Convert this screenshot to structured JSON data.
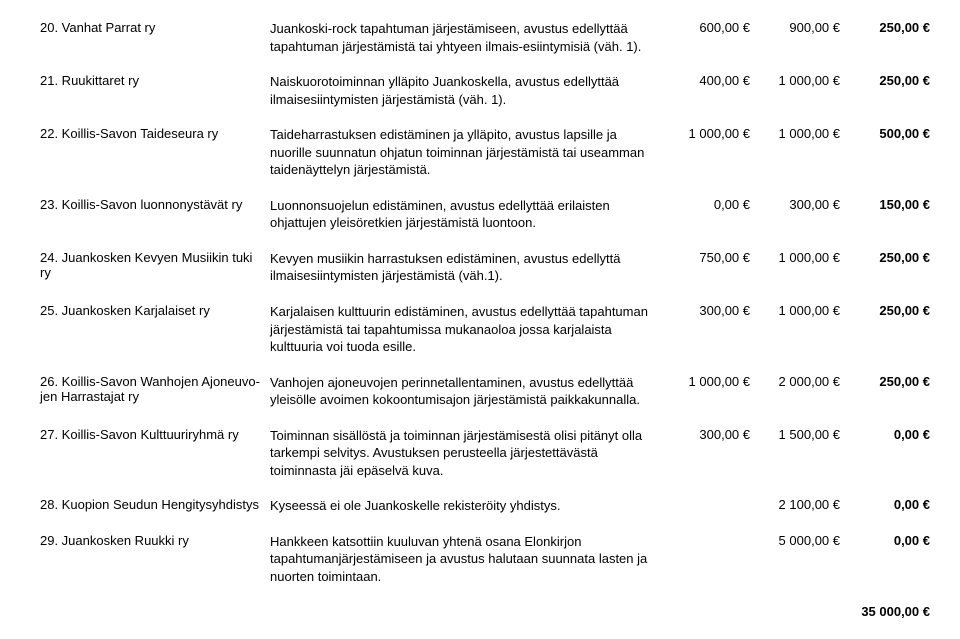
{
  "rows": [
    {
      "label": "20. Vanhat Parrat ry",
      "desc": "Juankoski-rock tapahtuman järjestämiseen, avustus edellyttää tapahtuman järjestämistä tai yhtyeen ilmais-esiintymisiä (väh. 1).",
      "a1": "600,00 €",
      "a2": "900,00 €",
      "a3": "250,00 €"
    },
    {
      "label": "21. Ruukittaret ry",
      "desc": "Naiskuorotoiminnan ylläpito Juankoskella, avustus edellyttää ilmaisesiintymisten järjestämistä (väh. 1).",
      "a1": "400,00 €",
      "a2": "1 000,00 €",
      "a3": "250,00 €"
    },
    {
      "label": "22. Koillis-Savon Taideseura ry",
      "desc": "Taideharrastuksen edistäminen ja ylläpito, avustus lapsille ja nuorille suunnatun ohjatun toiminnan järjestämistä tai useamman taidenäyttelyn järjestämistä.",
      "a1": "1 000,00 €",
      "a2": "1 000,00 €",
      "a3": "500,00 €"
    },
    {
      "label": "23. Koillis-Savon luonnonystävät ry",
      "desc": "Luonnonsuojelun edistäminen, avustus edellyttää erilaisten ohjattujen yleisöretkien järjestämistä luontoon.",
      "a1": "0,00 €",
      "a2": "300,00 €",
      "a3": "150,00 €"
    },
    {
      "label": "24. Juankosken Kevyen Musiikin tuki ry",
      "desc": "Kevyen musiikin harrastuksen edistäminen, avustus edellyttä ilmaisesiintymisten järjestämistä (väh.1).",
      "a1": "750,00 €",
      "a2": "1 000,00 €",
      "a3": "250,00 €"
    },
    {
      "label": "25. Juankosken Karjalaiset ry",
      "desc": "Karjalaisen kulttuurin edistäminen, avustus edellyttää tapahtuman järjestämistä tai tapahtumissa mukanaoloa jossa karjalaista kulttuuria voi tuoda esille.",
      "a1": "300,00 €",
      "a2": "1 000,00 €",
      "a3": "250,00 €"
    },
    {
      "label": "26. Koillis-Savon Wanhojen Ajoneuvo-\n      jen Harrastajat ry",
      "desc": "Vanhojen ajoneuvojen perinnetallentaminen, avustus edellyttää yleisölle avoimen kokoontumisajon järjestämistä paikkakunnalla.",
      "a1": "1 000,00 €",
      "a2": "2 000,00 €",
      "a3": "250,00 €"
    },
    {
      "label": "27. Koillis-Savon Kulttuuriryhmä ry",
      "desc": "Toiminnan sisällöstä ja toiminnan järjestämisestä olisi pitänyt olla tarkempi selvitys. Avustuksen perusteella järjestettävästä toiminnasta jäi epäselvä kuva.",
      "a1": "300,00 €",
      "a2": "1 500,00 €",
      "a3": "0,00 €"
    },
    {
      "label": "28. Kuopion Seudun Hengitysyhdistys",
      "desc": "Kyseessä ei ole Juankoskelle rekisteröity yhdistys.",
      "a1": "",
      "a2": "2 100,00 €",
      "a3": "0,00 €"
    },
    {
      "label": "29. Juankosken Ruukki ry",
      "desc": "Hankkeen katsottiin kuuluvan yhtenä osana Elonkirjon tapahtumanjärjestämiseen ja avustus halutaan suunnata lasten ja nuorten toimintaan.",
      "a1": "",
      "a2": "5 000,00 €",
      "a3": "0,00 €"
    }
  ],
  "total": "35 000,00 €"
}
